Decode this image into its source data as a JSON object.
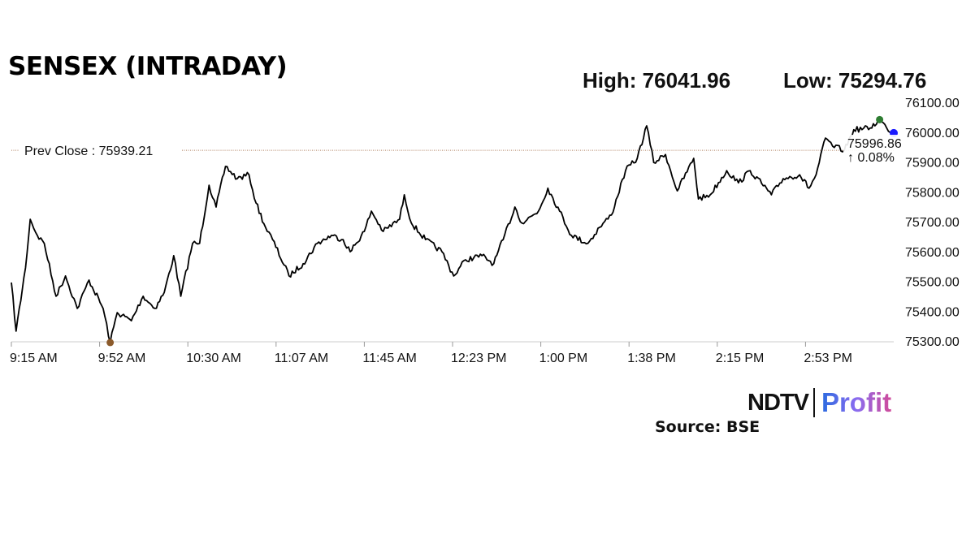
{
  "title": "SENSEX (INTRADAY)",
  "high_label": "High: 76041.96",
  "low_label": "Low: 75294.76",
  "source": "Source: BSE",
  "logo": {
    "left": "NDTV",
    "right": "Profit"
  },
  "chart_data": {
    "type": "line",
    "title": "SENSEX (INTRADAY)",
    "xlabel": "",
    "ylabel": "",
    "x_ticks": [
      "9:15 AM",
      "9:52 AM",
      "10:30 AM",
      "11:07 AM",
      "11:45 AM",
      "12:23 PM",
      "1:00 PM",
      "1:38 PM",
      "2:15 PM",
      "2:53 PM"
    ],
    "y_ticks": [
      "75300.00",
      "75400.00",
      "75500.00",
      "75600.00",
      "75700.00",
      "75800.00",
      "75900.00",
      "76000.00",
      "76100.00"
    ],
    "ylim": [
      75300,
      76100
    ],
    "xlim": [
      "9:15",
      "15:30"
    ],
    "grid": false,
    "prev_close": {
      "label": "Prev Close : 75939.21",
      "value": 75939.21
    },
    "last": {
      "value": "75996.86",
      "change": "↑ 0.08%",
      "time": "15:30"
    },
    "high": {
      "value": 76041.96,
      "time": "15:24"
    },
    "low": {
      "value": 75294.76,
      "time": "9:57"
    },
    "colors": {
      "line": "#000000",
      "high": "#2e7d32",
      "low": "#8b5a2b",
      "last": "#1a1aff",
      "change": "#2e7d32",
      "prev_close": "#b08060"
    },
    "series": [
      {
        "x": [
          "9:15",
          "9:17",
          "9:21",
          "9:23",
          "9:26",
          "9:29",
          "9:34",
          "9:38",
          "9:43",
          "9:48",
          "9:54",
          "9:57",
          "10:00",
          "10:06",
          "10:11",
          "10:16",
          "10:20",
          "10:24",
          "10:27",
          "10:32",
          "10:35",
          "10:39",
          "10:42",
          "10:46",
          "10:51",
          "10:56",
          "10:59",
          "11:03",
          "11:06",
          "11:13",
          "11:19",
          "11:25",
          "11:31",
          "11:36",
          "11:39",
          "11:45",
          "11:48",
          "11:53",
          "12:00",
          "12:02",
          "12:05",
          "12:11",
          "12:18",
          "12:23",
          "12:28",
          "12:35",
          "12:40",
          "12:44",
          "12:49",
          "12:52",
          "12:59",
          "13:03",
          "13:08",
          "13:13",
          "13:20",
          "13:25",
          "13:30",
          "13:36",
          "13:41",
          "13:45",
          "13:48",
          "13:53",
          "13:58",
          "14:05",
          "14:07",
          "14:12",
          "14:19",
          "14:24",
          "14:29",
          "14:38",
          "14:43",
          "14:50",
          "14:54",
          "14:57",
          "15:01",
          "15:04",
          "15:09",
          "15:13",
          "15:20",
          "15:24",
          "15:27",
          "15:30"
        ],
        "values": [
          75496,
          75333,
          75545,
          75708,
          75654,
          75627,
          75450,
          75518,
          75409,
          75504,
          75409,
          75295,
          75395,
          75368,
          75450,
          75409,
          75463,
          75586,
          75450,
          75627,
          75627,
          75822,
          75749,
          75885,
          75844,
          75857,
          75762,
          75681,
          75640,
          75518,
          75559,
          75627,
          75654,
          75640,
          75599,
          75667,
          75735,
          75667,
          75708,
          75790,
          75695,
          75640,
          75599,
          75518,
          75572,
          75586,
          75559,
          75640,
          75749,
          75695,
          75735,
          75812,
          75735,
          75654,
          75627,
          75681,
          75722,
          75871,
          75912,
          76021,
          75898,
          75925,
          75803,
          75912,
          75776,
          75790,
          75871,
          75830,
          75871,
          75790,
          75844,
          75857,
          75812,
          75857,
          75980,
          75953,
          75939,
          76008,
          76014,
          76042,
          76014,
          75997
        ]
      }
    ]
  }
}
